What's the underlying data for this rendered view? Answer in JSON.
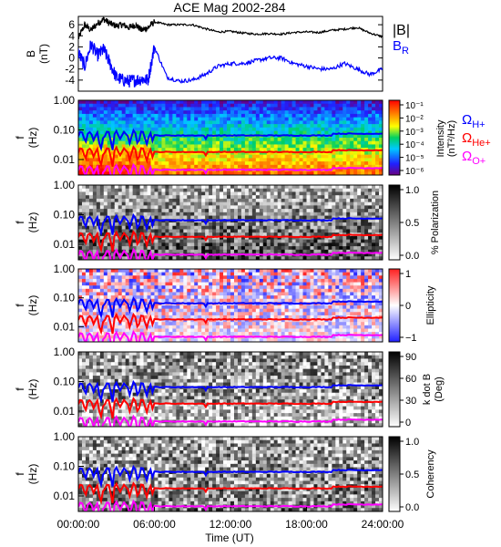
{
  "chart_data": [
    {
      "type": "line",
      "title": "ACE Mag 2002-284",
      "ylabel": "B",
      "yunit": "(nT)",
      "ylim": [
        -6,
        7.5
      ],
      "yticks": [
        6,
        4,
        2,
        0,
        -2,
        -4
      ],
      "xlim": [
        0,
        24
      ],
      "legend": "right",
      "series": [
        {
          "name": "|B|",
          "color": "#000000",
          "x": [
            0,
            0.5,
            1.0,
            1.5,
            2.0,
            2.5,
            3.0,
            3.5,
            4.0,
            4.5,
            5.0,
            5.5,
            6.0,
            7,
            8,
            9,
            10,
            11,
            12,
            13,
            14,
            15,
            16,
            17,
            18,
            19,
            20,
            21,
            22,
            23,
            24
          ],
          "values": [
            3.5,
            6.0,
            5.0,
            6.2,
            7.0,
            6.2,
            5.8,
            6.0,
            5.5,
            6.0,
            5.0,
            5.5,
            6.5,
            6.0,
            6.0,
            6.0,
            5.3,
            4.7,
            4.8,
            4.5,
            4.3,
            4.4,
            4.3,
            4.6,
            4.7,
            4.6,
            5.0,
            5.2,
            5.5,
            4.5,
            3.8
          ]
        },
        {
          "name": "BR",
          "label_main": "B",
          "label_sub": "R",
          "color": "#0000ff",
          "x": [
            0,
            0.5,
            1.0,
            1.5,
            2.0,
            2.5,
            3.0,
            3.5,
            4.0,
            4.5,
            5.0,
            5.5,
            6.0,
            7,
            8,
            9,
            10,
            11,
            12,
            13,
            14,
            15,
            16,
            17,
            18,
            19,
            20,
            21,
            22,
            23,
            24
          ],
          "values": [
            1.0,
            -1.5,
            2.5,
            0.5,
            1.5,
            -1.0,
            -3.5,
            -4.0,
            -4.2,
            -4.0,
            -3.8,
            -4.0,
            2.0,
            -3.5,
            -4.2,
            -4.0,
            -3.0,
            -1.5,
            -1.0,
            -1.0,
            -0.5,
            0.0,
            0.0,
            -1.0,
            -1.5,
            -2.0,
            -2.0,
            -1.0,
            -2.0,
            -3.0,
            -2.0
          ]
        }
      ]
    },
    {
      "type": "heatmap",
      "ylabel": "f",
      "yunit": "(Hz)",
      "yscale": "log",
      "ylim": [
        0.003,
        1.0
      ],
      "yticks": [
        "1.00",
        "0.10",
        "0.01"
      ],
      "colorbar": {
        "label": "Intensity",
        "unit": "(nT²/Hz)",
        "scale": "log",
        "ticks": [
          "10⁻¹",
          "10⁻²",
          "10⁻³",
          "10⁻⁴",
          "10⁻⁵",
          "10⁻⁶"
        ],
        "colormap": "rainbow"
      },
      "gyrofrequencies": [
        {
          "name": "ΩH+",
          "label_main": "Ω",
          "label_sub": "H+",
          "color": "#0000ff",
          "base_hz": 0.065
        },
        {
          "name": "ΩHe+",
          "label_main": "Ω",
          "label_sub": "He+",
          "color": "#ff0000",
          "base_hz": 0.018
        },
        {
          "name": "ΩO+",
          "label_main": "Ω",
          "label_sub": "O+",
          "color": "#ff00ff",
          "base_hz": 0.0045
        }
      ]
    },
    {
      "type": "heatmap",
      "ylabel": "f",
      "yunit": "(Hz)",
      "yscale": "log",
      "ylim": [
        0.003,
        1.0
      ],
      "yticks": [
        "1.00",
        "0.10",
        "0.01"
      ],
      "colorbar": {
        "label": "% Polarization",
        "ticks": [
          "1.0",
          "0.5",
          "0.0"
        ],
        "colormap": "gray"
      }
    },
    {
      "type": "heatmap",
      "ylabel": "f",
      "yunit": "(Hz)",
      "yscale": "log",
      "ylim": [
        0.003,
        1.0
      ],
      "yticks": [
        "1.00",
        "0.10",
        "0.01"
      ],
      "colorbar": {
        "label": "Ellipticity",
        "ticks": [
          "1",
          "0",
          "−1"
        ],
        "colormap": "bluewhitered"
      }
    },
    {
      "type": "heatmap",
      "ylabel": "f",
      "yunit": "(Hz)",
      "yscale": "log",
      "ylim": [
        0.003,
        1.0
      ],
      "yticks": [
        "1.00",
        "0.10",
        "0.01"
      ],
      "colorbar": {
        "label": "k dot B",
        "unit": "(Deg)",
        "ticks": [
          "90",
          "60",
          "30",
          "0"
        ],
        "colormap": "gray"
      }
    },
    {
      "type": "heatmap",
      "ylabel": "f",
      "yunit": "(Hz)",
      "yscale": "log",
      "ylim": [
        0.003,
        1.0
      ],
      "yticks": [
        "1.00",
        "0.10",
        "0.01"
      ],
      "xlabel": "Time (UT)",
      "xticks": [
        "00:00:00",
        "06:00:00",
        "12:00:00",
        "18:00:00",
        "24:00:00"
      ],
      "colorbar": {
        "label": "Coherency",
        "ticks": [
          "1.0",
          "0.5",
          "0.0"
        ],
        "colormap": "gray"
      }
    }
  ]
}
